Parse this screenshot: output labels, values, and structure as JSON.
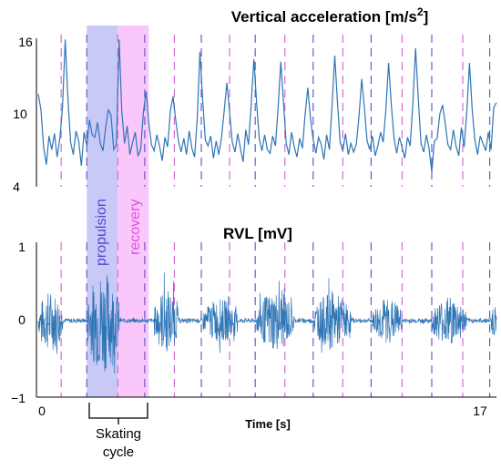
{
  "chart_data": [
    {
      "type": "line",
      "title": "Vertical acceleration [m/s",
      "title_superscript": "2",
      "title_suffix": "]",
      "yticks": [
        "16",
        "10",
        "4"
      ],
      "ylim": [
        4,
        16
      ],
      "xlim": [
        0,
        17
      ],
      "series": [
        {
          "color": "#2e75b6",
          "x": [
            0.0,
            0.1,
            0.2,
            0.3,
            0.4,
            0.5,
            0.6,
            0.7,
            0.8,
            0.9,
            1.0,
            1.1,
            1.2,
            1.3,
            1.4,
            1.5,
            1.6,
            1.7,
            1.8,
            1.9,
            2.0,
            2.1,
            2.2,
            2.3,
            2.4,
            2.5,
            2.6,
            2.7,
            2.8,
            2.9,
            3.0,
            3.1,
            3.2,
            3.3,
            3.4,
            3.5,
            3.6,
            3.7,
            3.8,
            3.9,
            4.0,
            4.1,
            4.2,
            4.3,
            4.4,
            4.5,
            4.6,
            4.7,
            4.8,
            4.9,
            5.0,
            5.1,
            5.2,
            5.3,
            5.4,
            5.5,
            5.6,
            5.7,
            5.8,
            5.9,
            6.0,
            6.1,
            6.2,
            6.3,
            6.4,
            6.5,
            6.6,
            6.7,
            6.8,
            6.9,
            7.0,
            7.1,
            7.2,
            7.3,
            7.4,
            7.5,
            7.6,
            7.7,
            7.8,
            7.9,
            8.0,
            8.1,
            8.2,
            8.3,
            8.4,
            8.5,
            8.6,
            8.7,
            8.8,
            8.9,
            9.0,
            9.1,
            9.2,
            9.3,
            9.4,
            9.5,
            9.6,
            9.7,
            9.8,
            9.9,
            10.0,
            10.1,
            10.2,
            10.3,
            10.4,
            10.5,
            10.6,
            10.7,
            10.8,
            10.9,
            11.0,
            11.1,
            11.2,
            11.3,
            11.4,
            11.5,
            11.6,
            11.7,
            11.8,
            11.9,
            12.0,
            12.1,
            12.2,
            12.3,
            12.4,
            12.5,
            12.6,
            12.7,
            12.8,
            12.9,
            13.0,
            13.1,
            13.2,
            13.3,
            13.4,
            13.5,
            13.6,
            13.7,
            13.8,
            13.9,
            14.0,
            14.1,
            14.2,
            14.3,
            14.4,
            14.5,
            14.6,
            14.7,
            14.8,
            14.9,
            15.0,
            15.1,
            15.2,
            15.3,
            15.4,
            15.5,
            15.6,
            15.7,
            15.8,
            15.9,
            16.0,
            16.1,
            16.2,
            16.3,
            16.4,
            16.5,
            16.6,
            16.7,
            16.8,
            16.9,
            17.0
          ],
          "y": [
            11.5,
            10.2,
            7.2,
            5.8,
            8.1,
            7.0,
            8.3,
            6.4,
            7.9,
            10.4,
            15.9,
            11.2,
            7.6,
            6.6,
            8.5,
            7.7,
            5.7,
            8.4,
            7.3,
            9.4,
            8.2,
            8.0,
            9.2,
            7.5,
            6.9,
            8.8,
            10.2,
            9.8,
            7.0,
            7.4,
            15.9,
            10.1,
            7.5,
            8.9,
            6.6,
            7.6,
            8.4,
            6.5,
            7.0,
            10.0,
            11.7,
            9.2,
            7.4,
            6.9,
            8.2,
            7.3,
            6.1,
            8.0,
            7.2,
            10.1,
            11.3,
            9.4,
            7.7,
            6.8,
            7.9,
            6.6,
            8.5,
            7.1,
            6.4,
            9.6,
            14.9,
            11.0,
            7.8,
            7.3,
            8.1,
            6.3,
            7.7,
            6.6,
            8.0,
            10.2,
            12.4,
            10.0,
            7.6,
            6.8,
            8.3,
            7.1,
            6.0,
            8.6,
            7.4,
            10.6,
            14.3,
            10.8,
            7.9,
            6.9,
            8.2,
            7.0,
            6.7,
            8.1,
            7.3,
            10.4,
            14.1,
            10.7,
            7.5,
            6.6,
            8.4,
            7.2,
            6.4,
            7.9,
            7.1,
            9.8,
            12.0,
            9.6,
            7.8,
            6.7,
            8.0,
            7.4,
            6.2,
            8.2,
            7.0,
            10.5,
            14.6,
            10.9,
            7.6,
            6.9,
            8.3,
            6.6,
            7.5,
            6.8,
            7.4,
            9.7,
            12.7,
            10.4,
            7.7,
            7.0,
            8.1,
            6.5,
            7.3,
            8.4,
            7.6,
            10.3,
            14.0,
            10.6,
            7.9,
            6.7,
            8.0,
            7.2,
            6.3,
            8.0,
            7.3,
            10.8,
            15.2,
            11.1,
            7.5,
            6.8,
            8.2,
            7.1,
            5.2,
            7.7,
            7.9,
            9.9,
            10.6,
            9.1,
            7.4,
            7.0,
            8.6,
            7.3,
            6.5,
            8.8,
            7.2,
            10.1,
            14.0,
            10.2,
            7.8,
            6.6,
            8.1,
            7.5,
            6.9,
            8.4,
            7.0,
            10.4,
            10.8
          ]
        }
      ]
    },
    {
      "type": "line",
      "title": "RVL [mV]",
      "yticks": [
        "1",
        "0",
        "−1"
      ],
      "ylim": [
        -1,
        1
      ],
      "xlim": [
        0,
        17
      ],
      "xlabel": "Time [s]",
      "xticks": [
        "0",
        "17"
      ],
      "series": [
        {
          "color": "#2e75b6",
          "bursts": [
            {
              "start": 0.0,
              "end": 0.9,
              "amp": 0.42
            },
            {
              "start": 1.8,
              "end": 3.0,
              "amp": 0.7
            },
            {
              "start": 4.3,
              "end": 5.2,
              "amp": 0.45
            },
            {
              "start": 6.1,
              "end": 7.4,
              "amp": 0.3
            },
            {
              "start": 8.1,
              "end": 9.5,
              "amp": 0.42
            },
            {
              "start": 10.2,
              "end": 11.6,
              "amp": 0.38
            },
            {
              "start": 12.4,
              "end": 13.5,
              "amp": 0.32
            },
            {
              "start": 14.6,
              "end": 15.9,
              "amp": 0.34
            },
            {
              "start": 16.8,
              "end": 17.0,
              "amp": 0.25
            }
          ],
          "baseline_amp": 0.03
        }
      ]
    }
  ],
  "annotations": {
    "propulsion_label": "propulsion",
    "recovery_label": "recovery",
    "cycle_label_line1": "Skating",
    "cycle_label_line2": "cycle",
    "propulsion_color": "#4b4bd1",
    "propulsion_fill": "#c9c9f7",
    "recovery_color": "#e64fe6",
    "recovery_fill": "#f9c7f9",
    "propulsion_span": [
      1.8,
      2.95
    ],
    "recovery_span": [
      2.95,
      4.1
    ],
    "purple_markers": [
      1.8,
      3.95,
      6.05,
      8.05,
      10.2,
      12.35,
      14.6,
      16.75
    ],
    "magenta_markers": [
      0.85,
      2.95,
      5.05,
      7.1,
      9.15,
      11.3,
      13.5,
      15.75
    ]
  }
}
